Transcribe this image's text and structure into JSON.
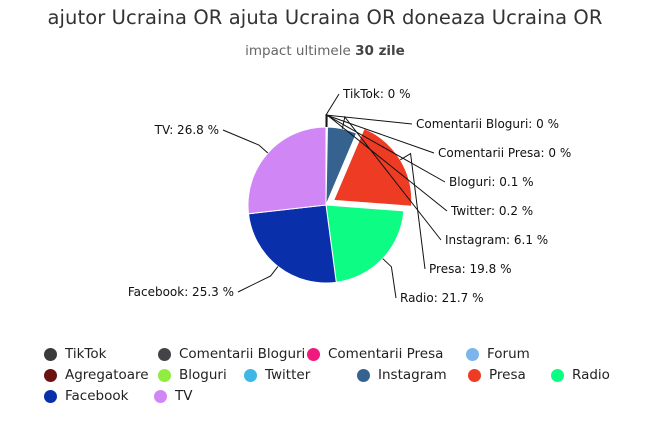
{
  "header": {
    "title": "ajutor Ucraina OR ajuta Ucraina OR doneaza Ucraina OR",
    "subtitle_prefix": "impact ultimele",
    "subtitle_bold": "30 zile"
  },
  "chart_data": {
    "type": "pie",
    "title": "ajutor Ucraina OR ajuta Ucraina OR doneaza Ucraina OR",
    "subtitle": "impact ultimele 30 zile",
    "legend_position": "bottom",
    "slices": [
      {
        "label": "TikTok",
        "value": 0,
        "display": "TikTok: 0 %",
        "color": "#3a3a3a"
      },
      {
        "label": "Comentarii Bloguri",
        "value": 0,
        "display": "Comentarii Bloguri: 0 %",
        "color": "#434348"
      },
      {
        "label": "Comentarii Presa",
        "value": 0,
        "display": "Comentarii Presa: 0 %",
        "color": "#f0197d"
      },
      {
        "label": "Forum",
        "value": 0,
        "display": "",
        "color": "#7cb5ec"
      },
      {
        "label": "Agregatoare",
        "value": 0,
        "display": "",
        "color": "#6b1111"
      },
      {
        "label": "Bloguri",
        "value": 0.1,
        "display": "Bloguri: 0.1 %",
        "color": "#90ed3d"
      },
      {
        "label": "Twitter",
        "value": 0.2,
        "display": "Twitter: 0.2 %",
        "color": "#3cb7e6"
      },
      {
        "label": "Instagram",
        "value": 6.1,
        "display": "Instagram: 6.1 %",
        "color": "#35628f"
      },
      {
        "label": "Presa",
        "value": 19.8,
        "display": "Presa: 19.8 %",
        "color": "#ee3b24"
      },
      {
        "label": "Radio",
        "value": 21.7,
        "display": "Radio: 21.7 %",
        "color": "#0cfc84"
      },
      {
        "label": "Facebook",
        "value": 25.3,
        "display": "Facebook: 25.3 %",
        "color": "#0a2faa"
      },
      {
        "label": "TV",
        "value": 26.8,
        "display": "TV: 26.8 %",
        "color": "#d186f5"
      }
    ],
    "exploded": [
      "Presa"
    ]
  }
}
